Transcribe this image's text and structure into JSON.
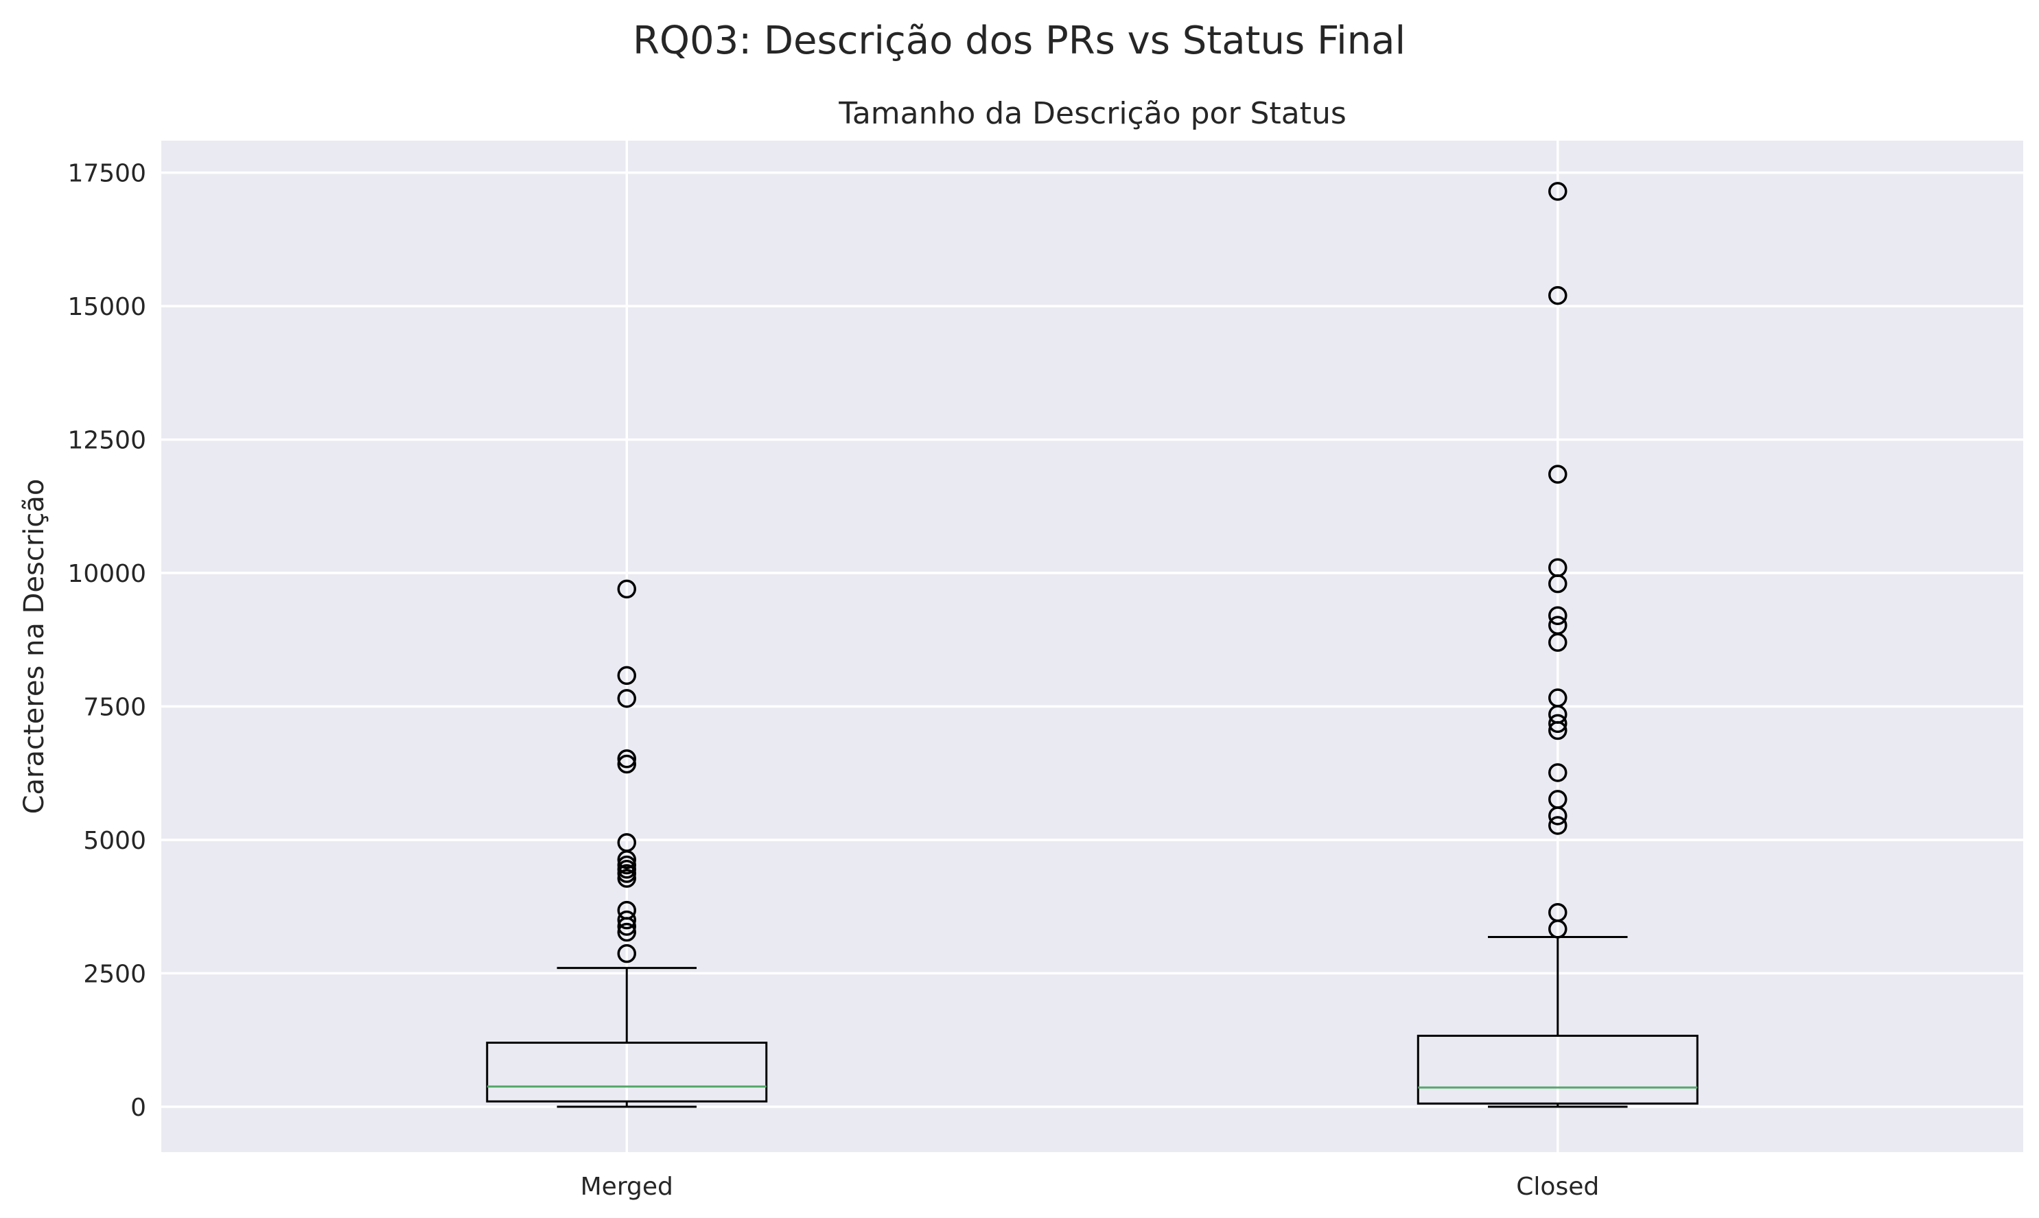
{
  "chart_data": {
    "type": "box",
    "suptitle": "RQ03: Descrição dos PRs vs Status Final",
    "title": "Tamanho da Descrição por Status",
    "xlabel": "",
    "ylabel": "Caracteres na Descrição",
    "ylim": [
      -850,
      18100
    ],
    "yticks": [
      0,
      2500,
      5000,
      7500,
      10000,
      12500,
      15000,
      17500
    ],
    "categories": [
      "Merged",
      "Closed"
    ],
    "grid": true,
    "background": "#eaeaf2",
    "median_color": "#55a868",
    "boxes": [
      {
        "category": "Merged",
        "whisker_low": 0,
        "q1": 100,
        "median": 380,
        "q3": 1200,
        "whisker_high": 2600,
        "outliers": [
          2870,
          3270,
          3380,
          3500,
          3680,
          4280,
          4370,
          4450,
          4530,
          4630,
          4950,
          6420,
          6520,
          7650,
          8080,
          9700
        ]
      },
      {
        "category": "Closed",
        "whisker_low": 0,
        "q1": 60,
        "median": 360,
        "q3": 1330,
        "whisker_high": 3180,
        "outliers": [
          3330,
          3640,
          5270,
          5450,
          5760,
          6260,
          7050,
          7180,
          7350,
          7660,
          8700,
          9020,
          9200,
          9800,
          10100,
          11850,
          15200,
          17150
        ]
      }
    ]
  }
}
